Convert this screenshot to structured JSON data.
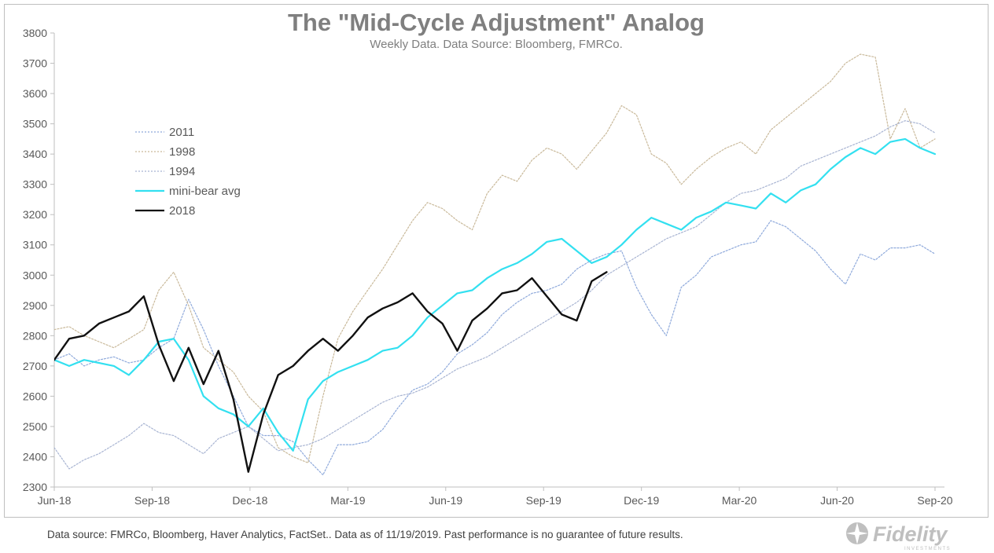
{
  "chart_data": {
    "type": "line",
    "title": "The \"Mid-Cycle Adjustment\" Analog",
    "subtitle": "Weekly Data. Data Source: Bloomberg, FMRCo.",
    "xlabel": "",
    "ylabel": "",
    "x_tick_labels": [
      "Jun-18",
      "Sep-18",
      "Dec-18",
      "Mar-19",
      "Jun-19",
      "Sep-19",
      "Dec-19",
      "Mar-20",
      "Jun-20",
      "Sep-20"
    ],
    "y_ticks": [
      2300,
      2400,
      2500,
      2600,
      2700,
      2800,
      2900,
      3000,
      3100,
      3200,
      3300,
      3400,
      3500,
      3600,
      3700,
      3800
    ],
    "ylim": [
      2300,
      3800
    ],
    "xlim_weeks": [
      0,
      118
    ],
    "x_unit": "weeks after Jun-18",
    "grid": false,
    "legend_position": "upper-left",
    "series": [
      {
        "name": "2011",
        "color": "#8ea9db",
        "style": "dotted",
        "x": [
          0,
          2,
          4,
          6,
          8,
          10,
          12,
          14,
          16,
          18,
          20,
          22,
          24,
          26,
          28,
          30,
          32,
          34,
          36,
          38,
          40,
          42,
          44,
          46,
          48,
          50,
          52,
          54,
          56,
          58,
          60,
          62,
          64,
          66,
          68,
          70,
          72,
          74,
          76,
          78,
          80,
          82,
          84,
          86,
          88,
          90,
          92,
          94,
          96,
          98,
          100,
          102,
          104,
          106,
          108,
          110,
          112,
          114,
          116,
          118
        ],
        "values": [
          2720,
          2740,
          2700,
          2720,
          2730,
          2710,
          2720,
          2760,
          2790,
          2920,
          2820,
          2700,
          2600,
          2500,
          2470,
          2470,
          2450,
          2390,
          2340,
          2440,
          2440,
          2450,
          2490,
          2560,
          2620,
          2640,
          2680,
          2740,
          2770,
          2810,
          2870,
          2910,
          2940,
          2950,
          2970,
          3020,
          3050,
          3070,
          3080,
          2960,
          2870,
          2800,
          2960,
          3000,
          3060,
          3080,
          3100,
          3110,
          3180,
          3160,
          3120,
          3080,
          3020,
          2970,
          3070,
          3050,
          3090,
          3090,
          3100,
          3070
        ]
      },
      {
        "name": "1998",
        "color": "#c9b99a",
        "style": "dotted",
        "x": [
          0,
          2,
          4,
          6,
          8,
          10,
          12,
          14,
          16,
          18,
          20,
          22,
          24,
          26,
          28,
          30,
          32,
          34,
          36,
          38,
          40,
          42,
          44,
          46,
          48,
          50,
          52,
          54,
          56,
          58,
          60,
          62,
          64,
          66,
          68,
          70,
          72,
          74,
          76,
          78,
          80,
          82,
          84,
          86,
          88,
          90,
          92,
          94,
          96,
          98,
          100,
          102,
          104,
          106,
          108,
          110,
          112,
          114,
          116,
          118
        ],
        "values": [
          2820,
          2830,
          2800,
          2780,
          2760,
          2790,
          2820,
          2950,
          3010,
          2900,
          2760,
          2720,
          2680,
          2600,
          2550,
          2430,
          2400,
          2380,
          2600,
          2790,
          2880,
          2950,
          3020,
          3100,
          3180,
          3240,
          3220,
          3180,
          3150,
          3270,
          3330,
          3310,
          3380,
          3420,
          3400,
          3350,
          3410,
          3470,
          3560,
          3530,
          3400,
          3370,
          3300,
          3350,
          3390,
          3420,
          3440,
          3400,
          3480,
          3520,
          3560,
          3600,
          3640,
          3700,
          3730,
          3720,
          3450,
          3550,
          3420,
          3450
        ]
      },
      {
        "name": "1994",
        "color": "#a8b4d2",
        "style": "dotted",
        "x": [
          0,
          2,
          4,
          6,
          8,
          10,
          12,
          14,
          16,
          18,
          20,
          22,
          24,
          26,
          28,
          30,
          32,
          34,
          36,
          38,
          40,
          42,
          44,
          46,
          48,
          50,
          52,
          54,
          56,
          58,
          60,
          62,
          64,
          66,
          68,
          70,
          72,
          74,
          76,
          78,
          80,
          82,
          84,
          86,
          88,
          90,
          92,
          94,
          96,
          98,
          100,
          102,
          104,
          106,
          108,
          110,
          112,
          114,
          116,
          118
        ],
        "values": [
          2430,
          2360,
          2390,
          2410,
          2440,
          2470,
          2510,
          2480,
          2470,
          2440,
          2410,
          2460,
          2480,
          2500,
          2460,
          2420,
          2430,
          2440,
          2460,
          2490,
          2520,
          2550,
          2580,
          2600,
          2610,
          2630,
          2660,
          2690,
          2710,
          2730,
          2760,
          2790,
          2820,
          2850,
          2880,
          2910,
          2950,
          3000,
          3030,
          3060,
          3090,
          3120,
          3140,
          3160,
          3200,
          3240,
          3270,
          3280,
          3300,
          3320,
          3360,
          3380,
          3400,
          3420,
          3440,
          3460,
          3490,
          3510,
          3500,
          3470
        ]
      },
      {
        "name": "mini-bear avg",
        "color": "#33e0f0",
        "style": "solid",
        "x": [
          0,
          2,
          4,
          6,
          8,
          10,
          12,
          14,
          16,
          18,
          20,
          22,
          24,
          26,
          28,
          30,
          32,
          34,
          36,
          38,
          40,
          42,
          44,
          46,
          48,
          50,
          52,
          54,
          56,
          58,
          60,
          62,
          64,
          66,
          68,
          70,
          72,
          74,
          76,
          78,
          80,
          82,
          84,
          86,
          88,
          90,
          92,
          94,
          96,
          98,
          100,
          102,
          104,
          106,
          108,
          110,
          112,
          114,
          116,
          118
        ],
        "values": [
          2720,
          2700,
          2720,
          2710,
          2700,
          2670,
          2720,
          2780,
          2790,
          2720,
          2600,
          2560,
          2540,
          2500,
          2560,
          2480,
          2420,
          2590,
          2650,
          2680,
          2700,
          2720,
          2750,
          2760,
          2800,
          2860,
          2900,
          2940,
          2950,
          2990,
          3020,
          3040,
          3070,
          3110,
          3120,
          3080,
          3040,
          3060,
          3100,
          3150,
          3190,
          3170,
          3150,
          3190,
          3210,
          3240,
          3230,
          3220,
          3270,
          3240,
          3280,
          3300,
          3350,
          3390,
          3420,
          3400,
          3440,
          3450,
          3420,
          3400
        ]
      },
      {
        "name": "2018",
        "color": "#111111",
        "style": "solid",
        "x": [
          0,
          2,
          4,
          6,
          8,
          10,
          12,
          14,
          16,
          18,
          20,
          22,
          24,
          26,
          28,
          30,
          32,
          34,
          36,
          38,
          40,
          42,
          44,
          46,
          48,
          50,
          52,
          54,
          56,
          58,
          60,
          62,
          64,
          66,
          68,
          70,
          72,
          74
        ],
        "values": [
          2720,
          2790,
          2800,
          2840,
          2860,
          2880,
          2930,
          2770,
          2650,
          2760,
          2640,
          2750,
          2590,
          2350,
          2540,
          2670,
          2700,
          2750,
          2790,
          2750,
          2800,
          2860,
          2890,
          2910,
          2940,
          2880,
          2840,
          2750,
          2850,
          2890,
          2940,
          2950,
          2990,
          2930,
          2870,
          2850,
          2980,
          3010
        ]
      }
    ]
  },
  "legend": {
    "items": [
      "2011",
      "1998",
      "1994",
      "mini-bear avg",
      "2018"
    ]
  },
  "footnote": "Data source: FMRCo, Bloomberg, Haver Analytics, FactSet.. Data as of 11/19/2019. Past performance is no guarantee of future results.",
  "logo": {
    "name": "Fidelity",
    "tagline": "INVESTMENTS"
  }
}
